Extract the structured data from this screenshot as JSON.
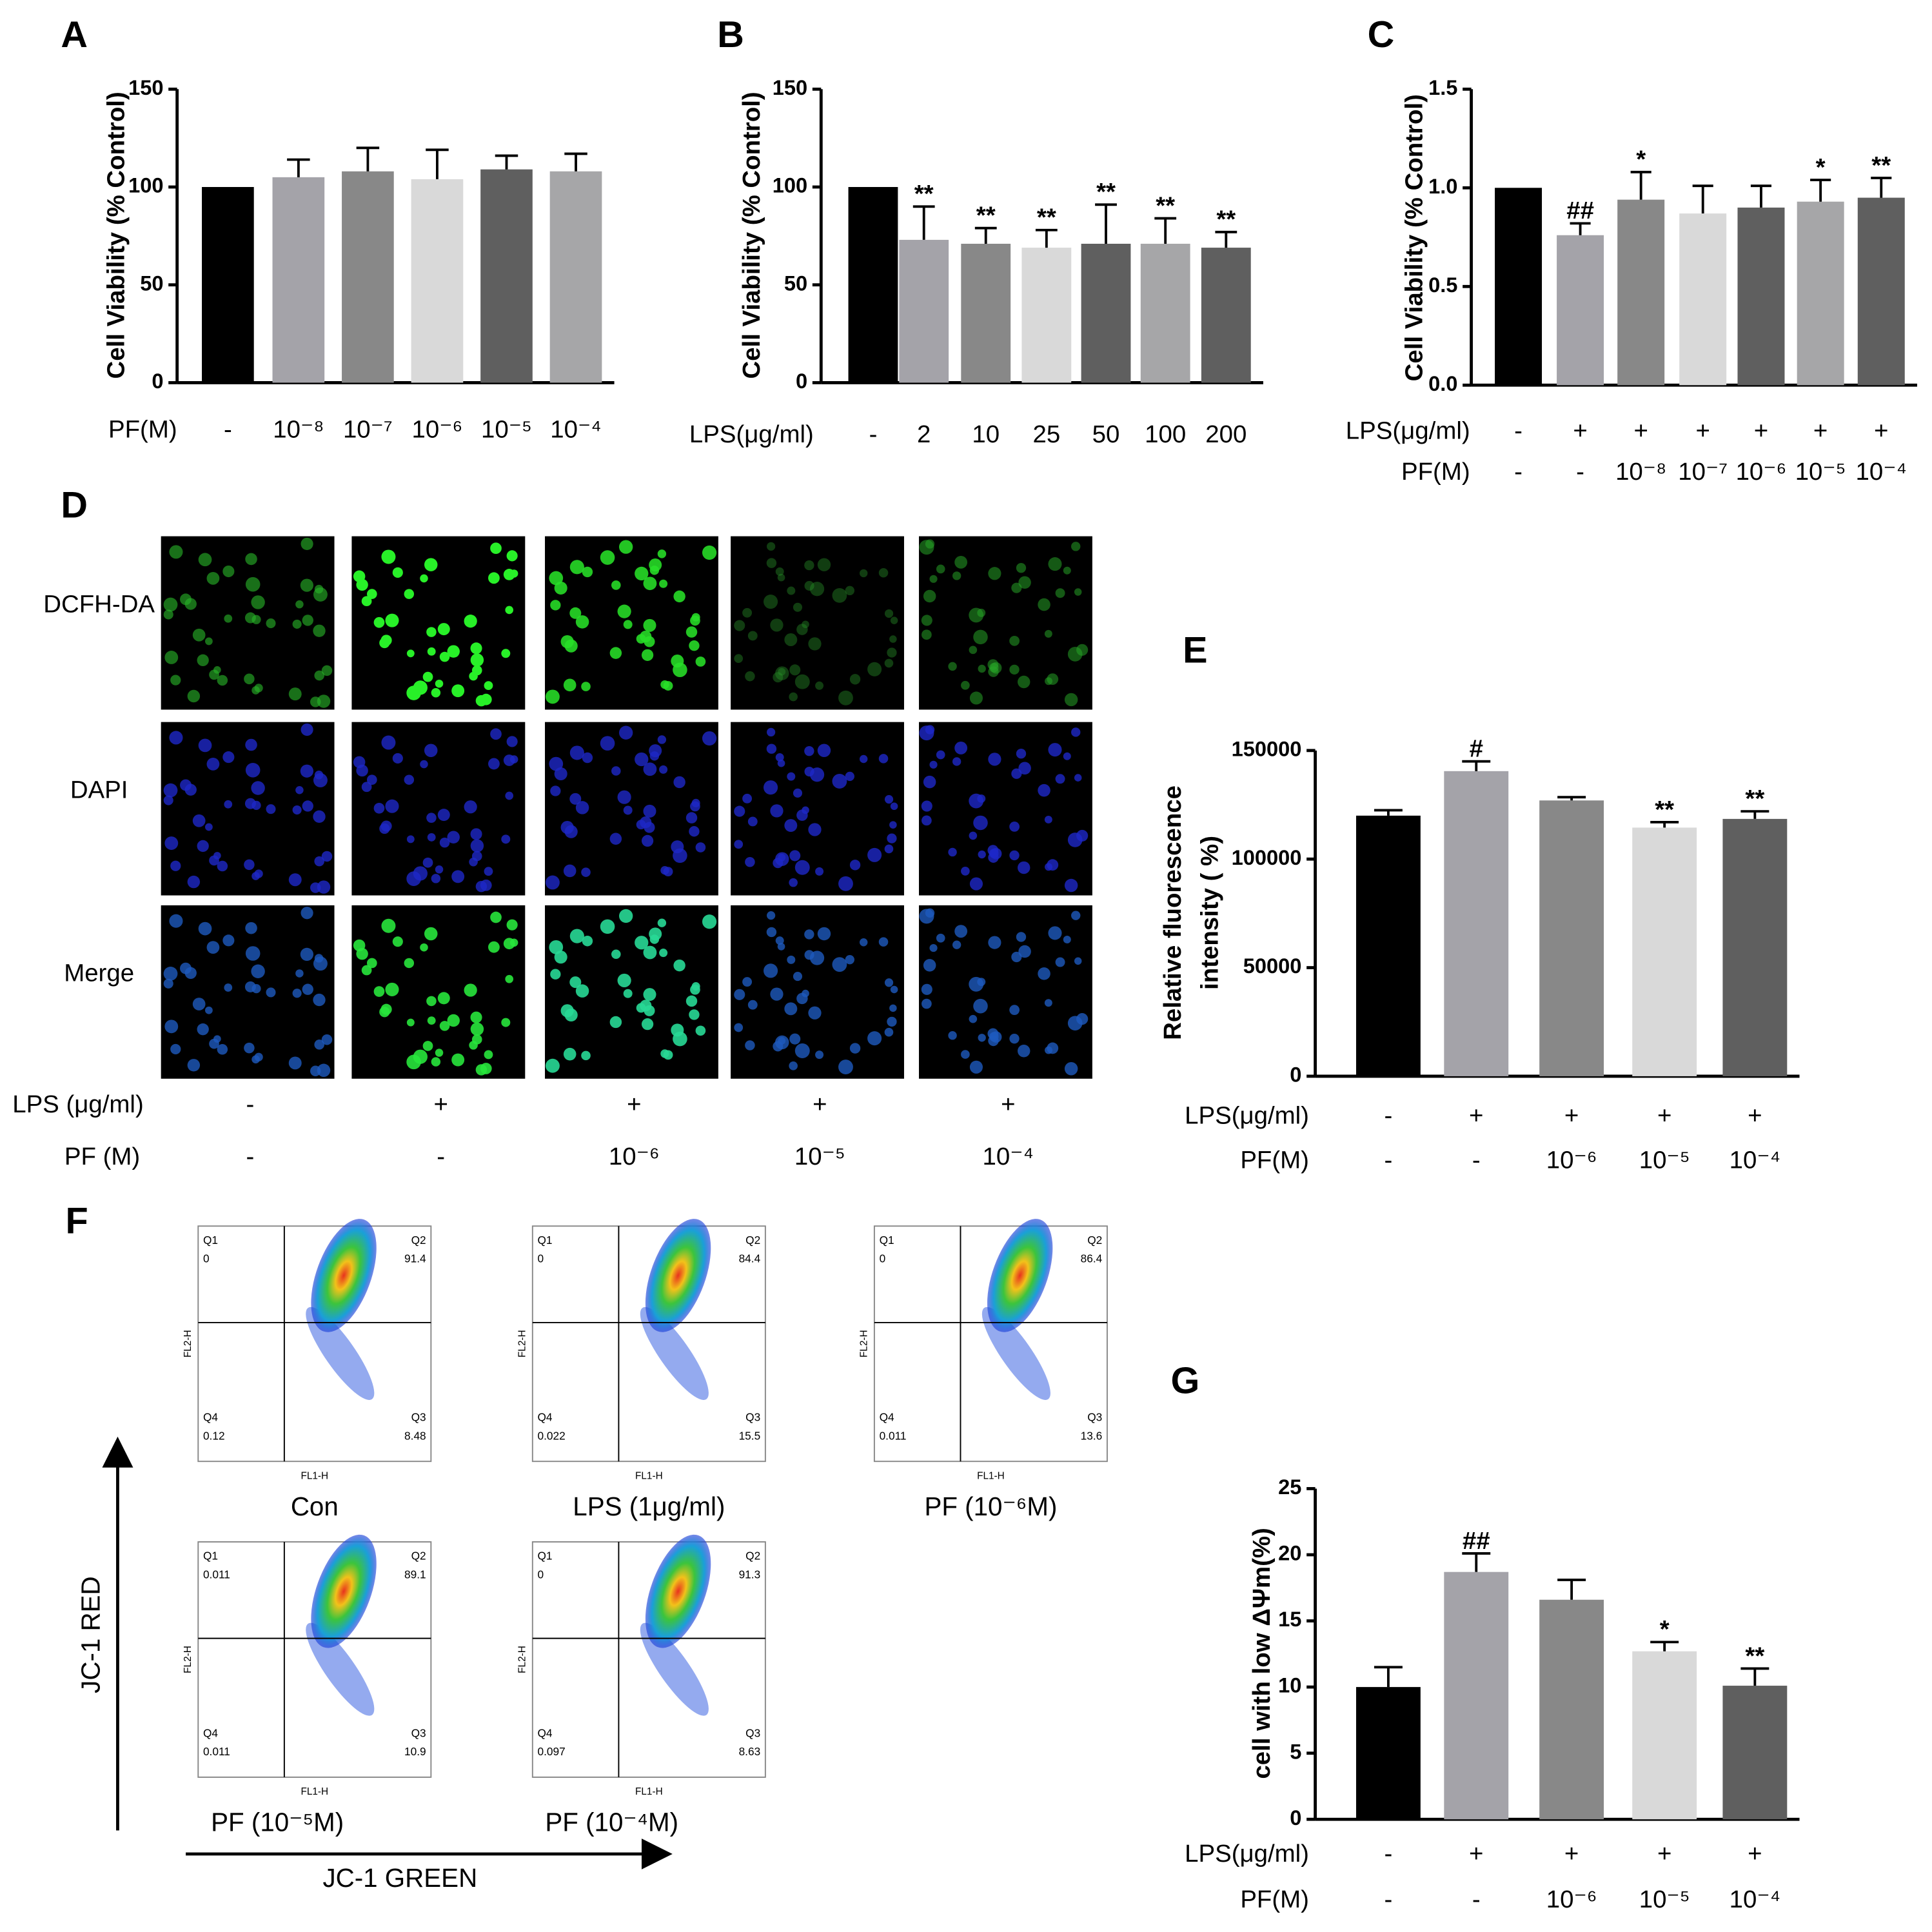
{
  "chart_data": [
    {
      "type": "bar",
      "panel": "A",
      "ylabel": "Cell Viability (% Control)",
      "ylim": [
        0,
        150
      ],
      "yticks": [
        0,
        50,
        100,
        150
      ],
      "values": [
        100,
        105,
        108,
        104,
        109,
        108
      ],
      "errors": [
        null,
        9,
        12,
        15,
        7,
        9
      ],
      "colors": [
        "#000000",
        "#a4a3a9",
        "#888888",
        "#d9d9d9",
        "#5f5f5f",
        "#a6a6a8"
      ],
      "conditions": [
        {
          "name": "PF(M)",
          "labels": [
            "-",
            "10⁻⁸",
            "10⁻⁷",
            "10⁻⁶",
            "10⁻⁵",
            "10⁻⁴"
          ]
        }
      ]
    },
    {
      "type": "bar",
      "panel": "B",
      "ylabel": "Cell Viability (% Control)",
      "ylim": [
        0,
        150
      ],
      "yticks": [
        0,
        50,
        100,
        150
      ],
      "values": [
        100,
        73,
        71,
        69,
        71,
        71,
        69
      ],
      "errors": [
        null,
        17,
        8,
        9,
        20,
        13,
        8
      ],
      "annotations": [
        null,
        "**",
        "**",
        "**",
        "**",
        "**",
        "**"
      ],
      "colors": [
        "#000000",
        "#a4a3a9",
        "#888888",
        "#d9d9d9",
        "#5f5f5f",
        "#a6a6a8",
        "#5f5f5f"
      ],
      "conditions": [
        {
          "name": "LPS(μg/ml)",
          "labels": [
            "-",
            "2",
            "10",
            "25",
            "50",
            "100",
            "200"
          ]
        }
      ]
    },
    {
      "type": "bar",
      "panel": "C",
      "ylabel": "Cell Viability (% Control)",
      "ylim": [
        0,
        1.5
      ],
      "yticks": [
        {
          "value": 0,
          "label": "0.0"
        },
        0.5,
        {
          "value": 1,
          "label": "1.0"
        },
        1.5
      ],
      "values": [
        1.0,
        0.76,
        0.94,
        0.87,
        0.9,
        0.93,
        0.95
      ],
      "errors": [
        null,
        0.06,
        0.14,
        0.14,
        0.11,
        0.11,
        0.1
      ],
      "annotations": [
        null,
        "##",
        "*",
        null,
        null,
        "*",
        "**"
      ],
      "colors": [
        "#000000",
        "#a4a3a9",
        "#888888",
        "#d9d9d9",
        "#5f5f5f",
        "#a6a6a8",
        "#5f5f5f"
      ],
      "conditions": [
        {
          "name": "LPS(μg/ml)",
          "labels": [
            "-",
            "+",
            "+",
            "+",
            "+",
            "+",
            "+"
          ]
        },
        {
          "name": "PF(M)",
          "labels": [
            "-",
            "-",
            "10⁻⁸",
            "10⁻⁷",
            "10⁻⁶",
            "10⁻⁵",
            "10⁻⁴"
          ]
        }
      ]
    },
    {
      "type": "bar",
      "panel": "E",
      "ylabel": [
        "Relative fluorescence",
        "intensity ( %)"
      ],
      "ylim": [
        0,
        150000
      ],
      "yticks": [
        0,
        50000,
        100000,
        150000
      ],
      "values": [
        120000,
        140500,
        127000,
        114500,
        118500
      ],
      "errors": [
        2500,
        4500,
        1500,
        2500,
        3500
      ],
      "annotations": [
        null,
        "#",
        null,
        "**",
        "**"
      ],
      "colors": [
        "#000000",
        "#a4a3a9",
        "#888888",
        "#d9d9d9",
        "#5f5f5f"
      ],
      "conditions": [
        {
          "name": "LPS(μg/ml)",
          "labels": [
            "-",
            "+",
            "+",
            "+",
            "+"
          ]
        },
        {
          "name": "PF(M)",
          "labels": [
            "-",
            "-",
            "10⁻⁶",
            "10⁻⁵",
            "10⁻⁴"
          ]
        }
      ]
    },
    {
      "type": "bar",
      "panel": "G",
      "ylabel": "cell with low ΔΨm(%)",
      "ylim": [
        0,
        25
      ],
      "yticks": [
        0,
        5,
        10,
        15,
        20,
        25
      ],
      "values": [
        10,
        18.7,
        16.6,
        12.7,
        10.1
      ],
      "errors": [
        1.5,
        1.4,
        1.5,
        0.7,
        1.3
      ],
      "annotations": [
        null,
        "##",
        null,
        "*",
        "**"
      ],
      "colors": [
        "#000000",
        "#a4a3a9",
        "#888888",
        "#d9d9d9",
        "#5f5f5f"
      ],
      "conditions": [
        {
          "name": "LPS(μg/ml)",
          "labels": [
            "-",
            "+",
            "+",
            "+",
            "+"
          ]
        },
        {
          "name": "PF(M)",
          "labels": [
            "-",
            "-",
            "10⁻⁶",
            "10⁻⁵",
            "10⁻⁴"
          ]
        }
      ]
    }
  ],
  "panel_d": {
    "panel": "D",
    "rows": [
      "DCFH-DA",
      "DAPI",
      "Merge"
    ],
    "conditions": [
      {
        "name": "LPS (μg/ml)",
        "labels": [
          "-",
          "+",
          "+",
          "+",
          "+"
        ]
      },
      {
        "name": "PF (M)",
        "labels": [
          "-",
          "-",
          "10⁻⁶",
          "10⁻⁵",
          "10⁻⁴"
        ]
      }
    ]
  },
  "panel_f": {
    "panel": "F",
    "y_axis": "JC-1 RED",
    "x_axis": "JC-1 GREEN",
    "fl_x": "FL1-H",
    "fl_y": "FL2-H",
    "plots": [
      {
        "caption": "Con",
        "quadrants": [
          {
            "name": "Q1",
            "value": 0
          },
          {
            "name": "Q2",
            "value": 91.4
          },
          {
            "name": "Q3",
            "value": 8.48
          },
          {
            "name": "Q4",
            "value": 0.12
          }
        ]
      },
      {
        "caption": "LPS (1μg/ml)",
        "quadrants": [
          {
            "name": "Q1",
            "value": 0
          },
          {
            "name": "Q2",
            "value": 84.4
          },
          {
            "name": "Q3",
            "value": 15.5
          },
          {
            "name": "Q4",
            "value": 0.022
          }
        ]
      },
      {
        "caption": "PF (10⁻⁶M)",
        "quadrants": [
          {
            "name": "Q1",
            "value": 0
          },
          {
            "name": "Q2",
            "value": 86.4
          },
          {
            "name": "Q3",
            "value": 13.6
          },
          {
            "name": "Q4",
            "value": 0.011
          }
        ]
      },
      {
        "caption": "PF (10⁻⁵M)",
        "quadrants": [
          {
            "name": "Q1",
            "value": 0.011
          },
          {
            "name": "Q2",
            "value": 89.1
          },
          {
            "name": "Q3",
            "value": 10.9
          },
          {
            "name": "Q4",
            "value": 0.011
          }
        ]
      },
      {
        "caption": "PF (10⁻⁴M)",
        "quadrants": [
          {
            "name": "Q1",
            "value": 0
          },
          {
            "name": "Q2",
            "value": 91.3
          },
          {
            "name": "Q3",
            "value": 8.63
          },
          {
            "name": "Q4",
            "value": 0.097
          }
        ]
      }
    ]
  }
}
